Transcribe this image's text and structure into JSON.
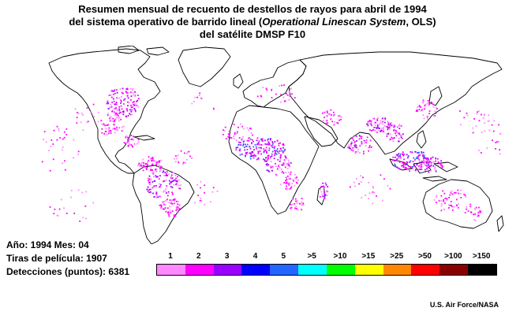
{
  "title": {
    "line1": "Resumen mensual de recuento de destellos de rayos para abril de 1994",
    "line2_pre": "del sistema operativo de barrido lineal (",
    "line2_em": "Operational Linescan System",
    "line2_post": ", OLS)",
    "line3": "del satélite DMSP F10"
  },
  "stats": {
    "year_label": "Año: 1994  Mes: 04",
    "strips_label": "Tiras de película: 1907",
    "detections_label": "Detecciones (puntos): 6381"
  },
  "legend": {
    "labels": [
      "1",
      "2",
      "3",
      "4",
      "5",
      ">5",
      ">10",
      ">15",
      ">25",
      ">50",
      ">100",
      ">150"
    ],
    "colors": [
      "#ff88ff",
      "#ff00ff",
      "#9900ff",
      "#0000ff",
      "#2266ff",
      "#00ffff",
      "#00ff00",
      "#ffff00",
      "#ff8800",
      "#ff0000",
      "#880000",
      "#000000"
    ]
  },
  "credit": "U.S. Air Force/NASA",
  "map": {
    "outline_color": "#000000",
    "dot_color_common": "#ff00ff",
    "dot_color_sparse": "#ff88ff",
    "dot_color_medium": "#9900ff",
    "dot_color_high": "#2266ff"
  }
}
